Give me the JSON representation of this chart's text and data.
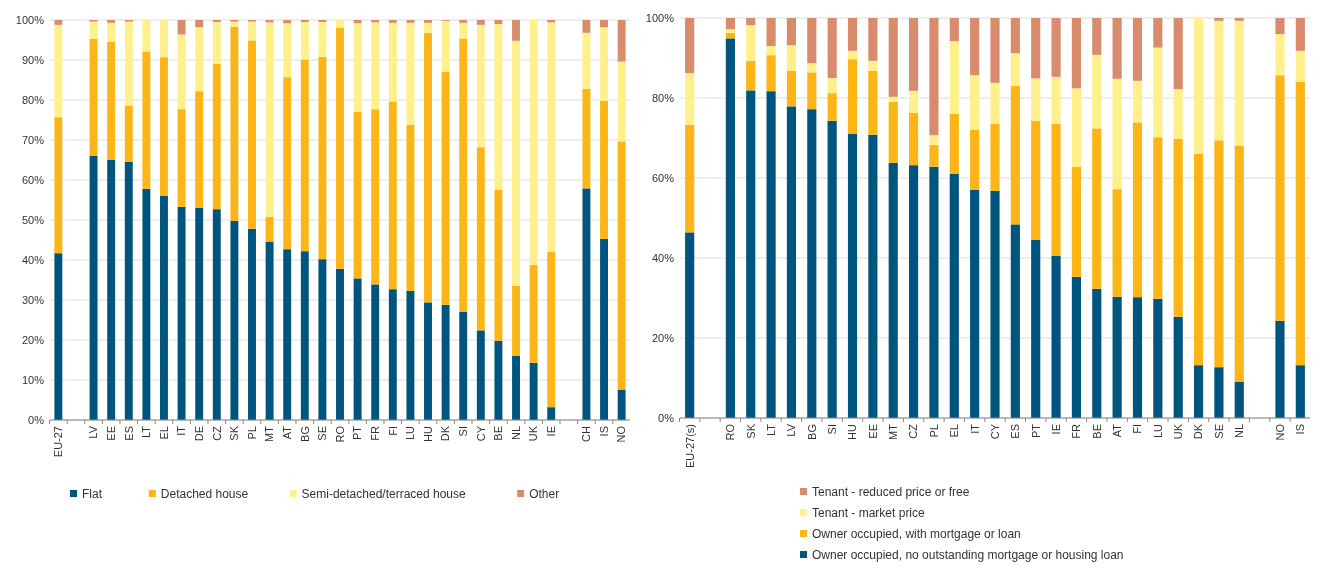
{
  "chart_data": [
    {
      "type": "bar",
      "stacked": true,
      "grid": "y",
      "legend": "bottom",
      "categories": [
        "EU-27",
        null,
        "LV",
        "EE",
        "ES",
        "LT",
        "EL",
        "IT",
        "DE",
        "CZ",
        "SK",
        "PL",
        "MT",
        "AT",
        "BG",
        "SE",
        "RO",
        "PT",
        "FR",
        "FI",
        "LU",
        "HU",
        "DK",
        "SI",
        "CY",
        "BE",
        "NL",
        "UK",
        "IE",
        null,
        "CH",
        "IS",
        "NO"
      ],
      "ylim": [
        0,
        100
      ],
      "yticks": [
        {
          "value": 0,
          "label": "0%"
        },
        {
          "value": 10,
          "label": "10%"
        },
        {
          "value": 20,
          "label": "20%"
        },
        {
          "value": 30,
          "label": "30%"
        },
        {
          "value": 40,
          "label": "40%"
        },
        {
          "value": 50,
          "label": "50%"
        },
        {
          "value": 60,
          "label": "60%"
        },
        {
          "value": 70,
          "label": "70%"
        },
        {
          "value": 80,
          "label": "80%"
        },
        {
          "value": 90,
          "label": "90%"
        },
        {
          "value": 100,
          "label": "100%"
        }
      ],
      "series": [
        {
          "name": "Flat",
          "color": "#00557f",
          "values": [
            41.7,
            null,
            66,
            65,
            64.5,
            57.8,
            56,
            53.3,
            53,
            52.7,
            49.8,
            47.8,
            44.6,
            42.7,
            42.2,
            40.2,
            37.8,
            35.4,
            33.9,
            32.7,
            32.3,
            29.4,
            28.8,
            27,
            22.4,
            19.8,
            16.1,
            14.3,
            3.2,
            null,
            57.9,
            45.3,
            7.5
          ]
        },
        {
          "name": "Detached house",
          "color": "#fbb516",
          "values": [
            34,
            null,
            29.3,
            29.5,
            14,
            34.3,
            34.7,
            24.4,
            29.2,
            36.4,
            48.5,
            47.1,
            6.2,
            43,
            47.9,
            50.6,
            60.3,
            41.7,
            43.8,
            46.9,
            41.5,
            67.4,
            58.3,
            68.4,
            45.8,
            37.7,
            17.5,
            24.5,
            38.9,
            null,
            24.9,
            34.5,
            62.1
          ]
        },
        {
          "name": "Semi-detached/terraced house",
          "color": "#fff08c",
          "values": [
            23.1,
            null,
            4.3,
            4.8,
            21.1,
            7.9,
            9.3,
            18.7,
            16,
            10.4,
            1.3,
            4.7,
            48.6,
            13.5,
            9.4,
            8.7,
            1.9,
            22.1,
            21.7,
            19.7,
            25.5,
            2.5,
            12.7,
            3.9,
            30.6,
            41.5,
            61.2,
            61.2,
            57.3,
            null,
            14,
            18.4,
            20
          ]
        },
        {
          "name": "Other",
          "color": "#d98b6e",
          "values": [
            1.2,
            null,
            0.4,
            0.7,
            0.4,
            0,
            0,
            3.6,
            1.8,
            0.5,
            0.4,
            0.4,
            0.6,
            0.8,
            0.5,
            0.5,
            0,
            0.8,
            0.6,
            0.7,
            0.7,
            0.7,
            0.2,
            0.7,
            1.2,
            1,
            5.2,
            0,
            0.6,
            null,
            3.2,
            1.8,
            10.4
          ]
        }
      ]
    },
    {
      "type": "bar",
      "stacked": true,
      "grid": "y",
      "legend": "bottom",
      "categories": [
        "EU-27(s)",
        null,
        "RO",
        "SK",
        "LT",
        "LV",
        "BG",
        "SI",
        "HU",
        "EE",
        "MT",
        "CZ",
        "PL",
        "EL",
        "IT",
        "CY",
        "ES",
        "PT",
        "IE",
        "FR",
        "BE",
        "AT",
        "FI",
        "LU",
        "UK",
        "DK",
        "SE",
        "NL",
        null,
        "NO",
        "IS"
      ],
      "ylim": [
        0,
        100
      ],
      "yticks": [
        {
          "value": 0,
          "label": "0%"
        },
        {
          "value": 20,
          "label": "20%"
        },
        {
          "value": 40,
          "label": "40%"
        },
        {
          "value": 60,
          "label": "60%"
        },
        {
          "value": 80,
          "label": "80%"
        },
        {
          "value": 100,
          "label": "100%"
        }
      ],
      "series": [
        {
          "name": "Owner occupied, no outstanding mortgage or housing loan",
          "color": "#00557f",
          "values": [
            46.4,
            null,
            94.9,
            81.9,
            81.7,
            77.9,
            77.2,
            74.3,
            71.1,
            70.8,
            63.8,
            63.2,
            62.8,
            61,
            57,
            56.8,
            48.4,
            44.5,
            40.5,
            35.3,
            32.3,
            30.3,
            30.2,
            29.8,
            25.3,
            13.2,
            12.7,
            9.1,
            null,
            24.3,
            13.2
          ]
        },
        {
          "name": "Owner occupied, with mortgage or loan",
          "color": "#fbb516",
          "values": [
            26.9,
            null,
            1.4,
            7.4,
            9,
            8.9,
            9.2,
            6.9,
            18.6,
            16,
            15.2,
            13.1,
            5.5,
            15,
            15.1,
            16.7,
            34.6,
            29.8,
            33,
            27.5,
            40.1,
            26.9,
            43.7,
            40.4,
            44.5,
            52.8,
            56.7,
            59,
            null,
            61.4,
            70.9
          ]
        },
        {
          "name": "Tenant - market price",
          "color": "#fff08c",
          "values": [
            12.9,
            null,
            0.9,
            8.9,
            2.3,
            6.4,
            2.3,
            3.8,
            2.1,
            2.5,
            1.3,
            5.5,
            2.4,
            18.2,
            13.6,
            10.3,
            8.2,
            10.6,
            11.8,
            19.6,
            18.4,
            27.6,
            10.4,
            22.4,
            12.4,
            34,
            29.9,
            31.2,
            null,
            10.3,
            7.7
          ]
        },
        {
          "name": "Tenant - reduced price or free",
          "color": "#d98b6e",
          "values": [
            13.8,
            null,
            2.8,
            1.8,
            7,
            6.8,
            11.3,
            15,
            8.2,
            10.7,
            19.7,
            18.2,
            29.3,
            5.8,
            14.3,
            16.2,
            8.8,
            15.1,
            14.7,
            17.6,
            9.2,
            15.2,
            15.7,
            7.4,
            17.8,
            0,
            0.7,
            0.7,
            null,
            4,
            8.2
          ]
        }
      ]
    }
  ]
}
